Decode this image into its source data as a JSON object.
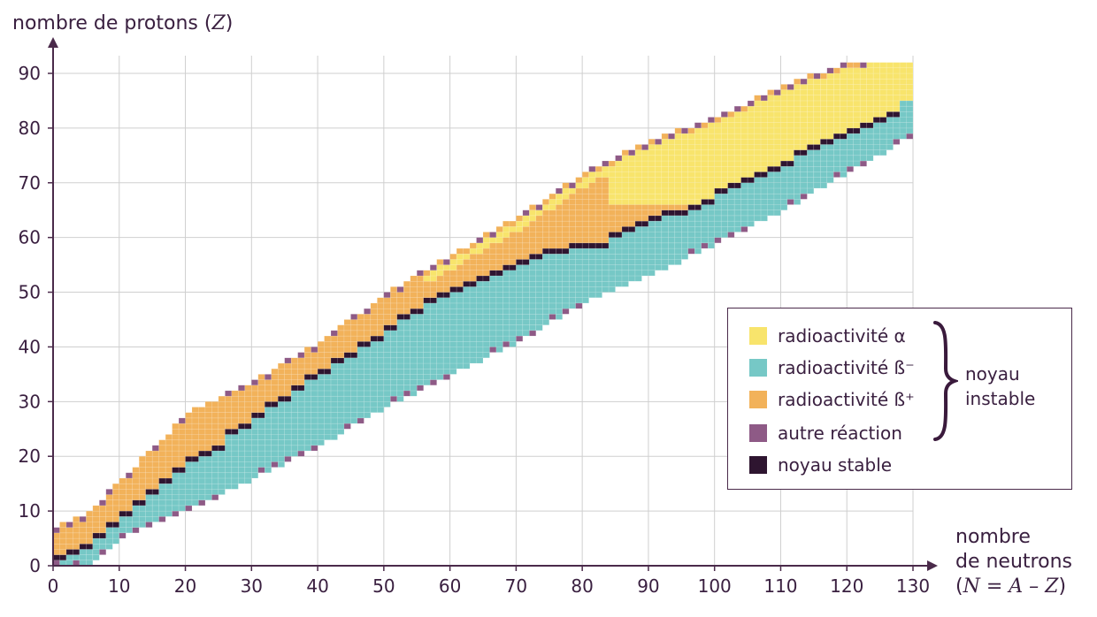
{
  "chart_data": {
    "type": "heatmap",
    "title": "",
    "ylabel_text": "nombre de protons (",
    "ylabel_var": "Z",
    "ylabel_close": ")",
    "xlabel_line1": "nombre",
    "xlabel_line2": "de neutrons",
    "xlabel_formula_open": "(",
    "xlabel_formula": "N = A – Z",
    "xlabel_formula_close": ")",
    "x_ticks": [
      0,
      10,
      20,
      30,
      40,
      50,
      60,
      70,
      80,
      90,
      100,
      110,
      120,
      130
    ],
    "y_ticks": [
      0,
      10,
      20,
      30,
      40,
      50,
      60,
      70,
      80,
      90
    ],
    "xlim": [
      0,
      130
    ],
    "ylim": [
      0,
      90
    ],
    "grid": true,
    "legend_position": "bottom-right",
    "categories": [
      {
        "key": "alpha",
        "label": "radioactivité α",
        "color": "#f8e46c"
      },
      {
        "key": "beta_minus",
        "label": "radioactivité ß⁻",
        "color": "#76c8c6"
      },
      {
        "key": "beta_plus",
        "label": "radioactivité ß⁺",
        "color": "#f2b25a"
      },
      {
        "key": "other",
        "label": "autre réaction",
        "color": "#8e5a86"
      },
      {
        "key": "stable",
        "label": "noyau stable",
        "color": "#2e1530"
      }
    ],
    "group_label": "noyau instable",
    "group_members": [
      "alpha",
      "beta_minus",
      "beta_plus"
    ],
    "valley_of_stability_N_Z": [
      [
        0,
        1
      ],
      [
        1,
        1
      ],
      [
        2,
        2
      ],
      [
        4,
        3
      ],
      [
        6,
        5
      ],
      [
        8,
        7
      ],
      [
        10,
        9
      ],
      [
        12,
        11
      ],
      [
        14,
        13
      ],
      [
        16,
        15
      ],
      [
        18,
        17
      ],
      [
        20,
        19
      ],
      [
        22,
        20
      ],
      [
        24,
        21
      ],
      [
        26,
        24
      ],
      [
        28,
        25
      ],
      [
        30,
        27
      ],
      [
        32,
        29
      ],
      [
        34,
        30
      ],
      [
        36,
        32
      ],
      [
        38,
        34
      ],
      [
        40,
        35
      ],
      [
        42,
        37
      ],
      [
        44,
        38
      ],
      [
        46,
        40
      ],
      [
        48,
        41
      ],
      [
        50,
        43
      ],
      [
        52,
        45
      ],
      [
        54,
        46
      ],
      [
        56,
        48
      ],
      [
        58,
        49
      ],
      [
        60,
        50
      ],
      [
        62,
        51
      ],
      [
        64,
        52
      ],
      [
        66,
        53
      ],
      [
        68,
        54
      ],
      [
        70,
        55
      ],
      [
        72,
        56
      ],
      [
        74,
        57
      ],
      [
        76,
        57
      ],
      [
        78,
        58
      ],
      [
        80,
        58
      ],
      [
        82,
        58
      ],
      [
        84,
        60
      ],
      [
        86,
        61
      ],
      [
        88,
        62
      ],
      [
        90,
        63
      ],
      [
        92,
        64
      ],
      [
        94,
        64
      ],
      [
        96,
        65
      ],
      [
        98,
        66
      ],
      [
        100,
        68
      ],
      [
        102,
        69
      ],
      [
        104,
        70
      ],
      [
        106,
        71
      ],
      [
        108,
        72
      ],
      [
        110,
        73
      ],
      [
        112,
        75
      ],
      [
        114,
        76
      ],
      [
        116,
        77
      ],
      [
        118,
        78
      ],
      [
        120,
        79
      ],
      [
        122,
        80
      ],
      [
        124,
        81
      ],
      [
        126,
        82
      ]
    ],
    "band_lower_N_Z": [
      [
        0,
        0
      ],
      [
        5,
        0
      ],
      [
        10,
        5
      ],
      [
        20,
        10
      ],
      [
        30,
        16
      ],
      [
        40,
        22
      ],
      [
        50,
        29
      ],
      [
        60,
        35
      ],
      [
        70,
        41
      ],
      [
        80,
        48
      ],
      [
        90,
        53
      ],
      [
        100,
        59
      ],
      [
        110,
        65
      ],
      [
        120,
        72
      ],
      [
        126,
        76
      ],
      [
        130,
        79
      ]
    ],
    "band_upper_N_Z": [
      [
        0,
        6
      ],
      [
        5,
        9
      ],
      [
        10,
        15
      ],
      [
        20,
        27
      ],
      [
        30,
        33
      ],
      [
        40,
        40
      ],
      [
        50,
        49
      ],
      [
        60,
        56
      ],
      [
        70,
        63
      ],
      [
        80,
        71
      ],
      [
        90,
        77
      ],
      [
        100,
        81
      ],
      [
        110,
        87
      ],
      [
        120,
        91
      ],
      [
        126,
        92
      ],
      [
        130,
        92
      ]
    ]
  }
}
